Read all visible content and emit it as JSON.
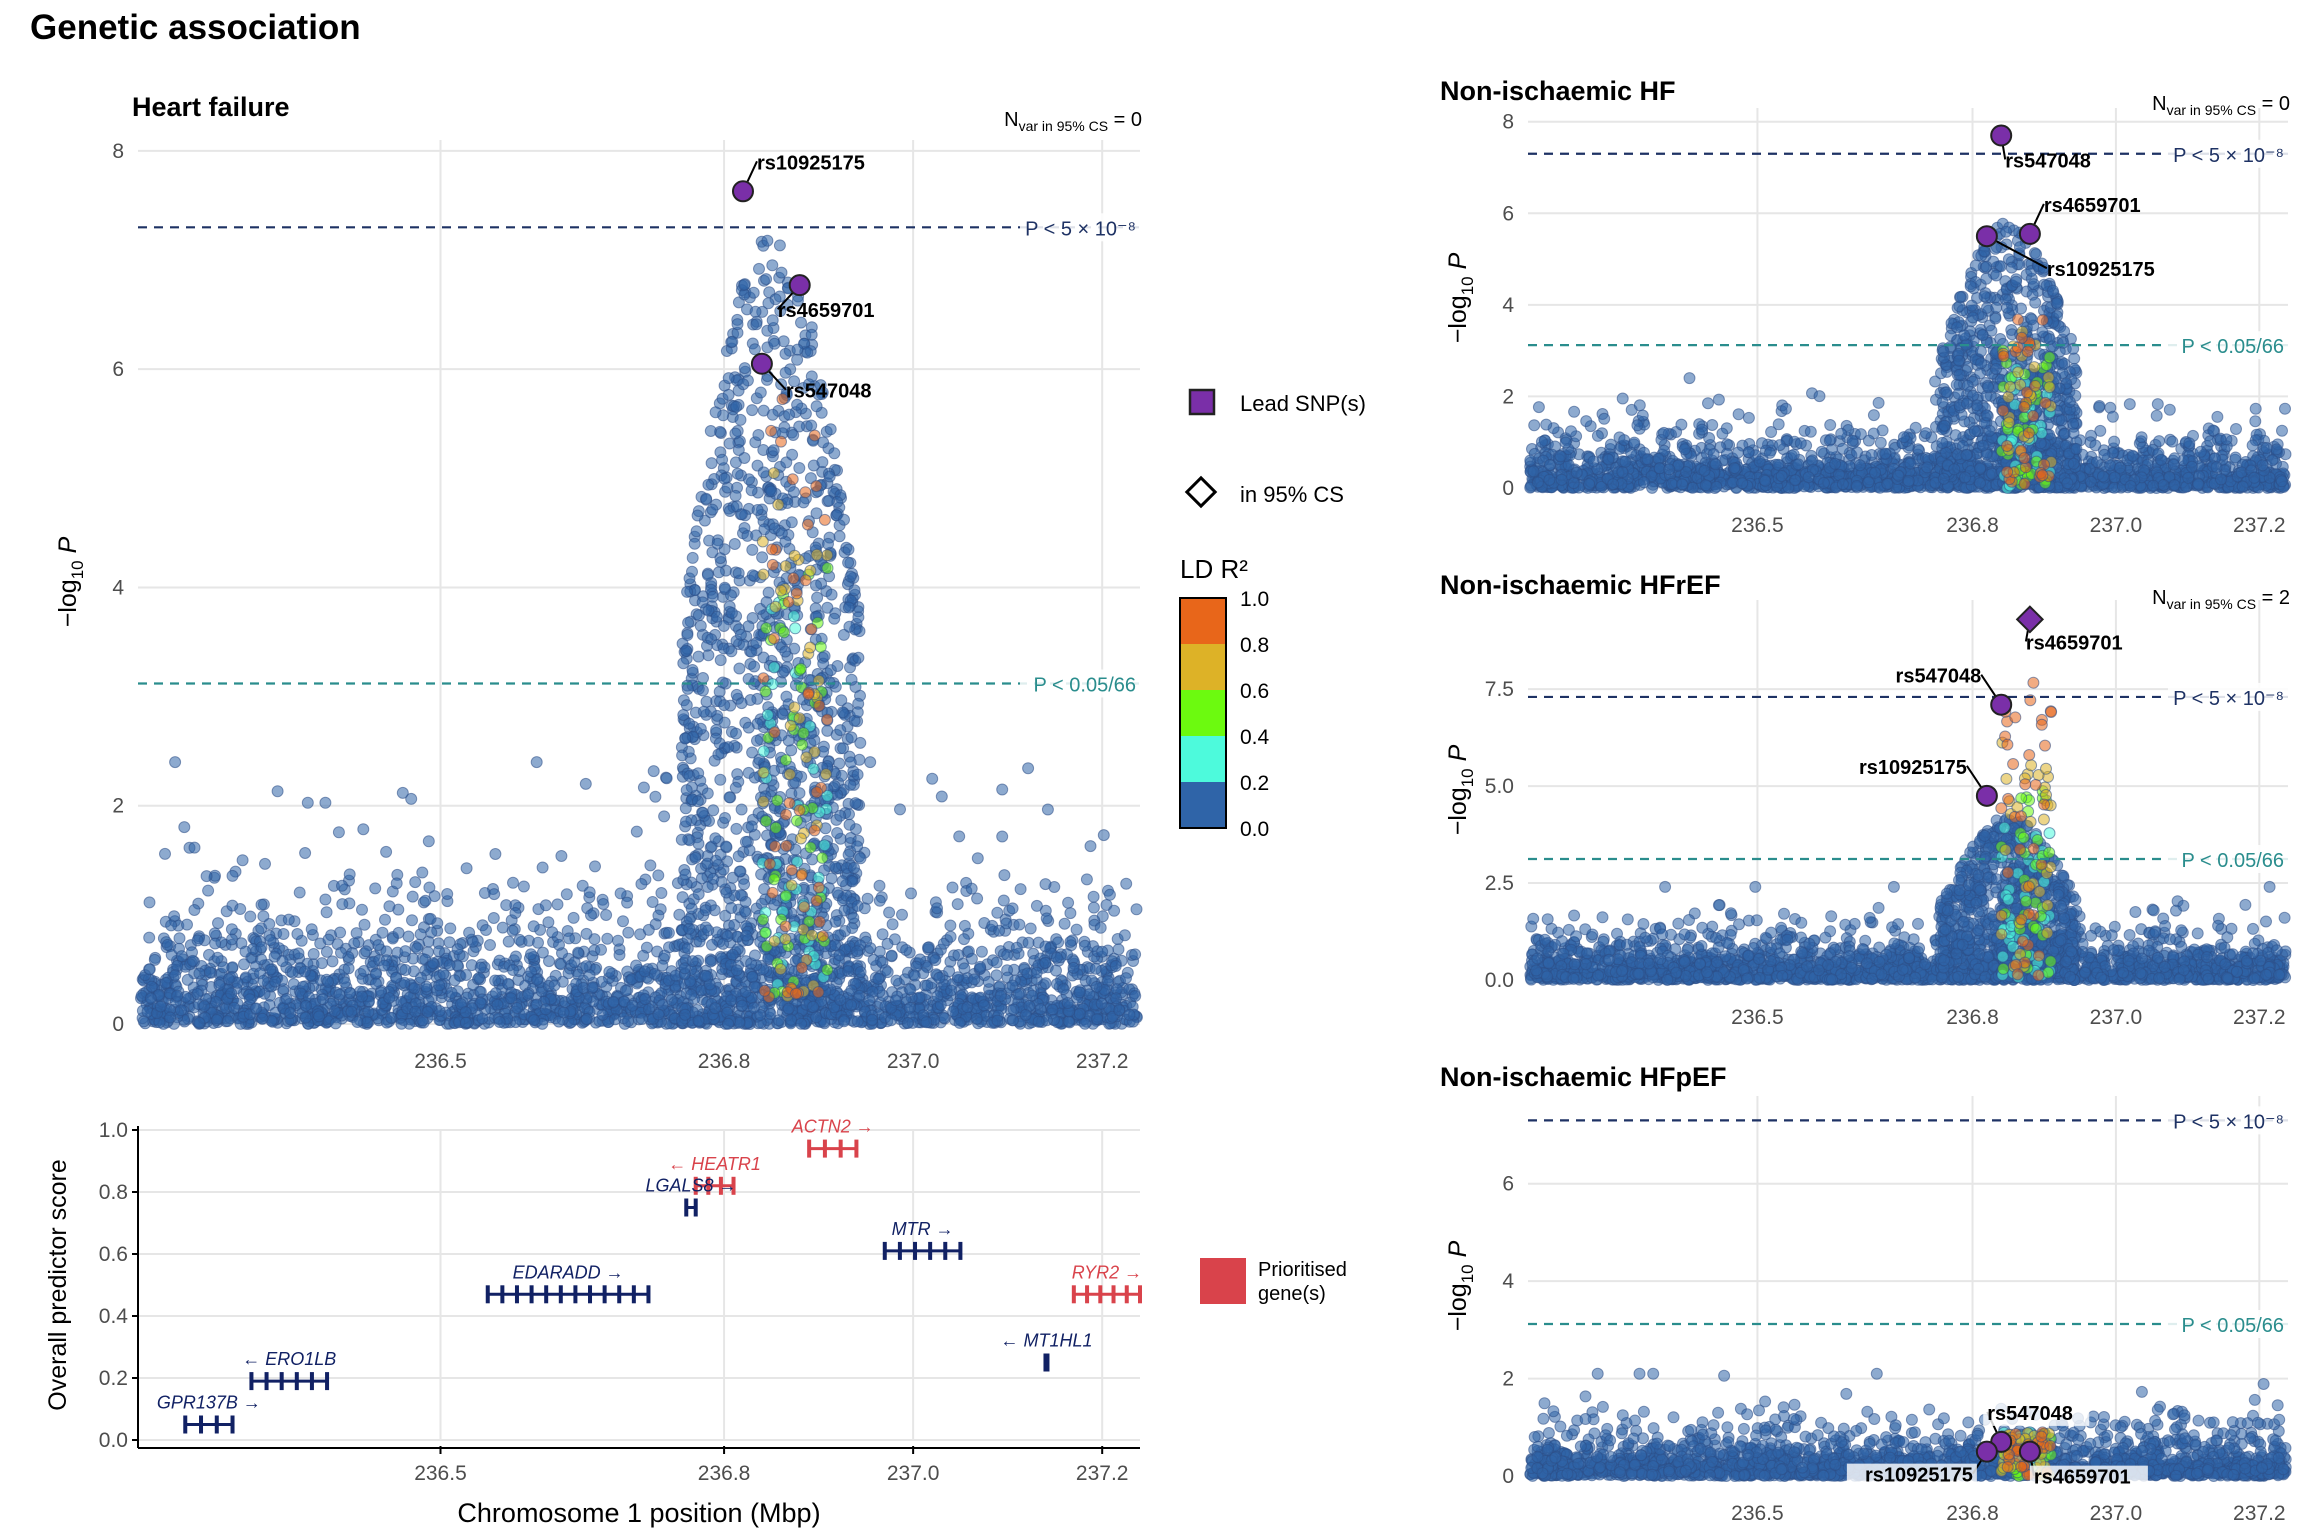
{
  "figure_title": "Genetic association",
  "colors": {
    "lead": "#7a2fa8",
    "ld_bins": [
      "#2f64a8",
      "#4dfadc",
      "#6cfa0f",
      "#ddb227",
      "#e8661a"
    ],
    "genome_line": "#1e3264",
    "fdr_line": "#2a8d8d",
    "prioritised": "#d9434b",
    "gene": "#112164"
  },
  "legend": {
    "lead_label": "Lead SNP(s)",
    "cs_label": "in 95% CS",
    "ld_title": "LD R²",
    "ld_ticks": [
      "1.0",
      "0.8",
      "0.6",
      "0.4",
      "0.2",
      "0.0"
    ],
    "prioritised_label_1": "Prioritised",
    "prioritised_label_2": "gene(s)"
  },
  "chart_data": [
    {
      "type": "scatter",
      "id": "hf",
      "title": "Heart failure",
      "ylabel": "−log10 P",
      "xlim": [
        236.18,
        237.24
      ],
      "ylim": [
        0,
        8.1
      ],
      "y_ticks": [
        0,
        2,
        4,
        6,
        8
      ],
      "y_tick_labels": [
        "0",
        "2",
        "4",
        "6",
        "8"
      ],
      "x_ticks": [
        236.5,
        236.8,
        237.0,
        237.2
      ],
      "x_tick_labels": [
        "236.5",
        "236.8",
        "237.0",
        "237.2"
      ],
      "n_cs_label": "Nvar in 95% CS = 0",
      "genome_wide": 7.3,
      "genome_wide_label": "P < 5 × 10⁻⁸",
      "fdr": 3.12,
      "fdr_label": "P < 0.05/66",
      "peak_center": 236.85,
      "lead_snps": [
        {
          "name": "rs10925175",
          "x": 236.82,
          "y": 7.63
        },
        {
          "name": "rs4659701",
          "x": 236.88,
          "y": 6.77
        },
        {
          "name": "rs547048",
          "x": 236.84,
          "y": 6.05
        }
      ]
    },
    {
      "type": "scatter",
      "id": "nihf",
      "title": "Non-ischaemic HF",
      "ylabel": "−log10 P",
      "xlim": [
        236.18,
        237.24
      ],
      "ylim": [
        0,
        8.3
      ],
      "y_ticks": [
        0,
        2,
        4,
        6,
        8
      ],
      "y_tick_labels": [
        "0",
        "2",
        "4",
        "6",
        "8"
      ],
      "x_ticks": [
        236.5,
        236.8,
        237.0,
        237.2
      ],
      "x_tick_labels": [
        "236.5",
        "236.8",
        "237.0",
        "237.2"
      ],
      "n_cs_label": "Nvar in 95% CS = 0",
      "genome_wide": 7.3,
      "genome_wide_label": "P < 5 × 10⁻⁸",
      "fdr": 3.12,
      "fdr_label": "P < 0.05/66",
      "peak_center": 236.86,
      "lead_snps": [
        {
          "name": "rs547048",
          "x": 236.84,
          "y": 7.7
        },
        {
          "name": "rs4659701",
          "x": 236.88,
          "y": 5.55
        },
        {
          "name": "rs10925175",
          "x": 236.82,
          "y": 5.5
        }
      ]
    },
    {
      "type": "scatter",
      "id": "hfref",
      "title": "Non-ischaemic HFrEF",
      "ylabel": "−log10 P",
      "xlim": [
        236.18,
        237.24
      ],
      "ylim": [
        0,
        9.8
      ],
      "y_ticks": [
        0,
        2.5,
        5,
        7.5
      ],
      "y_tick_labels": [
        "0.0",
        "2.5",
        "5.0",
        "7.5"
      ],
      "x_ticks": [
        236.5,
        236.8,
        237.0,
        237.2
      ],
      "x_tick_labels": [
        "236.5",
        "236.8",
        "237.0",
        "237.2"
      ],
      "n_cs_label": "Nvar in 95% CS = 2",
      "genome_wide": 7.3,
      "genome_wide_label": "P < 5 × 10⁻⁸",
      "fdr": 3.12,
      "fdr_label": "P < 0.05/66",
      "peak_center": 236.86,
      "lead_snps": [
        {
          "name": "rs4659701",
          "x": 236.88,
          "y": 9.3,
          "in_cs": true
        },
        {
          "name": "rs547048",
          "x": 236.84,
          "y": 7.1
        },
        {
          "name": "rs10925175",
          "x": 236.82,
          "y": 4.75
        }
      ]
    },
    {
      "type": "scatter",
      "id": "hfpef",
      "title": "Non-ischaemic HFpEF",
      "ylabel": "−log10 P",
      "xlim": [
        236.18,
        237.24
      ],
      "ylim": [
        0,
        7.8
      ],
      "y_ticks": [
        0,
        2,
        4,
        6
      ],
      "y_tick_labels": [
        "0",
        "2",
        "4",
        "6"
      ],
      "x_ticks": [
        236.5,
        236.8,
        237.0,
        237.2
      ],
      "x_tick_labels": [
        "236.5",
        "236.8",
        "237.0",
        "237.2"
      ],
      "n_cs_label": "",
      "genome_wide": 7.3,
      "genome_wide_label": "P < 5 × 10⁻⁸",
      "fdr": 3.12,
      "fdr_label": "P < 0.05/66",
      "peak_center": 236.86,
      "lead_snps": [
        {
          "name": "rs547048",
          "x": 236.84,
          "y": 0.7
        },
        {
          "name": "rs10925175",
          "x": 236.82,
          "y": 0.5
        },
        {
          "name": "rs4659701",
          "x": 236.88,
          "y": 0.5
        }
      ]
    },
    {
      "type": "gene_track",
      "id": "genes",
      "ylabel": "Overall predictor score",
      "xlabel": "Chromosome 1 position (Mbp)",
      "xlim": [
        236.18,
        237.24
      ],
      "ylim": [
        0,
        1.0
      ],
      "y_ticks": [
        0,
        0.2,
        0.4,
        0.6,
        0.8,
        1.0
      ],
      "y_tick_labels": [
        "0.0",
        "0.2",
        "0.4",
        "0.6",
        "0.8",
        "1.0"
      ],
      "x_ticks": [
        236.5,
        236.8,
        237.0,
        237.2
      ],
      "x_tick_labels": [
        "236.5",
        "236.8",
        "237.0",
        "237.2"
      ],
      "genes": [
        {
          "name": "ACTN2",
          "label": "ACTN2 →",
          "start": 236.89,
          "end": 236.94,
          "score": 0.94,
          "prioritised": true
        },
        {
          "name": "HEATR1",
          "label": "← HEATR1",
          "start": 236.77,
          "end": 236.81,
          "score": 0.82,
          "prioritised": true
        },
        {
          "name": "LGALS8",
          "label": "LGALS8 →",
          "start": 236.76,
          "end": 236.77,
          "score": 0.75,
          "prioritised": false
        },
        {
          "name": "MTR",
          "label": "MTR →",
          "start": 236.97,
          "end": 237.05,
          "score": 0.61,
          "prioritised": false
        },
        {
          "name": "EDARADD",
          "label": "EDARADD →",
          "start": 236.55,
          "end": 236.72,
          "score": 0.47,
          "prioritised": false
        },
        {
          "name": "RYR2",
          "label": "RYR2 →",
          "start": 237.17,
          "end": 237.24,
          "score": 0.47,
          "prioritised": true
        },
        {
          "name": "MT1HL1",
          "label": "← MT1HL1",
          "start": 237.14,
          "end": 237.14,
          "score": 0.25,
          "prioritised": false
        },
        {
          "name": "ERO1LB",
          "label": "← ERO1LB",
          "start": 236.3,
          "end": 236.38,
          "score": 0.19,
          "prioritised": false
        },
        {
          "name": "GPR137B",
          "label": "GPR137B →",
          "start": 236.23,
          "end": 236.28,
          "score": 0.05,
          "prioritised": false
        }
      ]
    }
  ]
}
